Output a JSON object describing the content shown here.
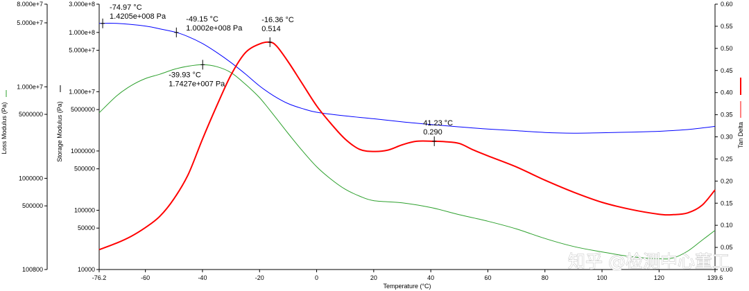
{
  "chart_data": {
    "type": "line",
    "title": "",
    "xlabel": "Temperature (°C)",
    "xlim": [
      -76.2,
      139.6
    ],
    "x_ticks": [
      "-76.2",
      "-60",
      "-40",
      "-20",
      "0",
      "20",
      "40",
      "60",
      "80",
      "100",
      "120",
      "139.6"
    ],
    "y_axes": {
      "loss": {
        "label": "Loss Modulus (Pa)",
        "scale": "log",
        "range": [
          100800,
          80000000
        ],
        "color": "#2ca02c",
        "ticks": [
          "8.000e+7",
          "5.000e+7",
          "1.000e+7",
          "5000000",
          "1000000",
          "500000",
          "100800"
        ]
      },
      "storage": {
        "label": "Storage Modulus (Pa)",
        "scale": "log",
        "range": [
          10000,
          300000000
        ],
        "color": "#0000ff",
        "ticks": [
          "3.000e+8",
          "1.000e+8",
          "5.000e+7",
          "1.000e+7",
          "5000000",
          "1000000",
          "500000",
          "100000",
          "50000",
          "10000"
        ]
      },
      "tan": {
        "label": "Tan Delta",
        "scale": "linear",
        "range": [
          0.0,
          0.6
        ],
        "color": "#ff0000",
        "ticks": [
          "0.60",
          "0.55",
          "0.50",
          "0.45",
          "0.40",
          "0.35",
          "0.30",
          "0.25",
          "0.20",
          "0.15",
          "0.10",
          "0.05",
          "0.00"
        ]
      }
    },
    "series": [
      {
        "axis": "storage",
        "color": "#0000ff",
        "x": [
          -76.2,
          -70,
          -60,
          -55,
          -49.15,
          -45,
          -40,
          -35,
          -30,
          -25,
          -20,
          -15,
          -10,
          -5,
          0,
          10,
          20,
          30,
          40,
          50,
          60,
          70,
          80,
          90,
          100,
          110,
          120,
          130,
          139.6
        ],
        "y": [
          142000000,
          142000000,
          128000000,
          115000000,
          100000000,
          85000000,
          65000000,
          46000000,
          31000000,
          20000000,
          12500000,
          8500000,
          6300000,
          5200000,
          4500000,
          3900000,
          3500000,
          3100000,
          2800000,
          2550000,
          2350000,
          2200000,
          2050000,
          2000000,
          2030000,
          2080000,
          2150000,
          2300000,
          2600000
        ]
      },
      {
        "axis": "loss",
        "color": "#2ca02c",
        "x": [
          -76.2,
          -70,
          -65,
          -60,
          -55,
          -50,
          -45,
          -39.93,
          -35,
          -30,
          -25,
          -20,
          -15,
          -10,
          -5,
          0,
          5,
          10,
          15,
          20,
          30,
          40,
          50,
          60,
          70,
          80,
          90,
          100,
          110,
          120,
          125,
          130,
          135,
          139.6
        ],
        "y": [
          5200000,
          8000000,
          10300000,
          12300000,
          13700000,
          15500000,
          16800000,
          17427000,
          16600000,
          14300000,
          10700000,
          7600000,
          4900000,
          3100000,
          2000000,
          1340000,
          980000,
          760000,
          640000,
          570000,
          540000,
          480000,
          400000,
          340000,
          280000,
          220000,
          180000,
          157000,
          140000,
          132000,
          135000,
          160000,
          210000,
          270000
        ]
      },
      {
        "axis": "tan",
        "color": "#ff0000",
        "x": [
          -76.2,
          -70,
          -65,
          -60,
          -55,
          -50,
          -45,
          -40,
          -35,
          -30,
          -25,
          -20,
          -16.36,
          -14,
          -10,
          -5,
          0,
          5,
          10,
          15,
          20,
          25,
          30,
          35,
          41.23,
          45,
          50,
          55,
          60,
          70,
          80,
          90,
          100,
          110,
          120,
          125,
          130,
          135,
          139.6
        ],
        "y": [
          0.045,
          0.06,
          0.075,
          0.095,
          0.12,
          0.16,
          0.215,
          0.295,
          0.37,
          0.44,
          0.49,
          0.51,
          0.514,
          0.505,
          0.47,
          0.42,
          0.37,
          0.33,
          0.295,
          0.272,
          0.267,
          0.27,
          0.282,
          0.29,
          0.29,
          0.289,
          0.285,
          0.27,
          0.257,
          0.232,
          0.202,
          0.175,
          0.152,
          0.136,
          0.125,
          0.124,
          0.128,
          0.145,
          0.18
        ]
      }
    ],
    "annotations": [
      {
        "axis": "storage",
        "x": -74.97,
        "y": 142050000,
        "lines": [
          "-74.97 °C",
          "1.4205e+008 Pa"
        ]
      },
      {
        "axis": "storage",
        "x": -49.15,
        "y": 100020000,
        "lines": [
          "-49.15 °C",
          "1.0002e+008 Pa"
        ]
      },
      {
        "axis": "loss",
        "x": -39.93,
        "y": 17427000,
        "lines": [
          "-39.93 °C",
          "1.7427e+007 Pa"
        ]
      },
      {
        "axis": "tan",
        "x": -16.36,
        "y": 0.514,
        "lines": [
          "-16.36 °C",
          "0.514"
        ]
      },
      {
        "axis": "tan",
        "x": 41.23,
        "y": 0.29,
        "lines": [
          "41.23 °C",
          "0.290"
        ]
      }
    ],
    "grid": false,
    "legend": "none"
  },
  "watermark": "知乎 @检测中心董工"
}
